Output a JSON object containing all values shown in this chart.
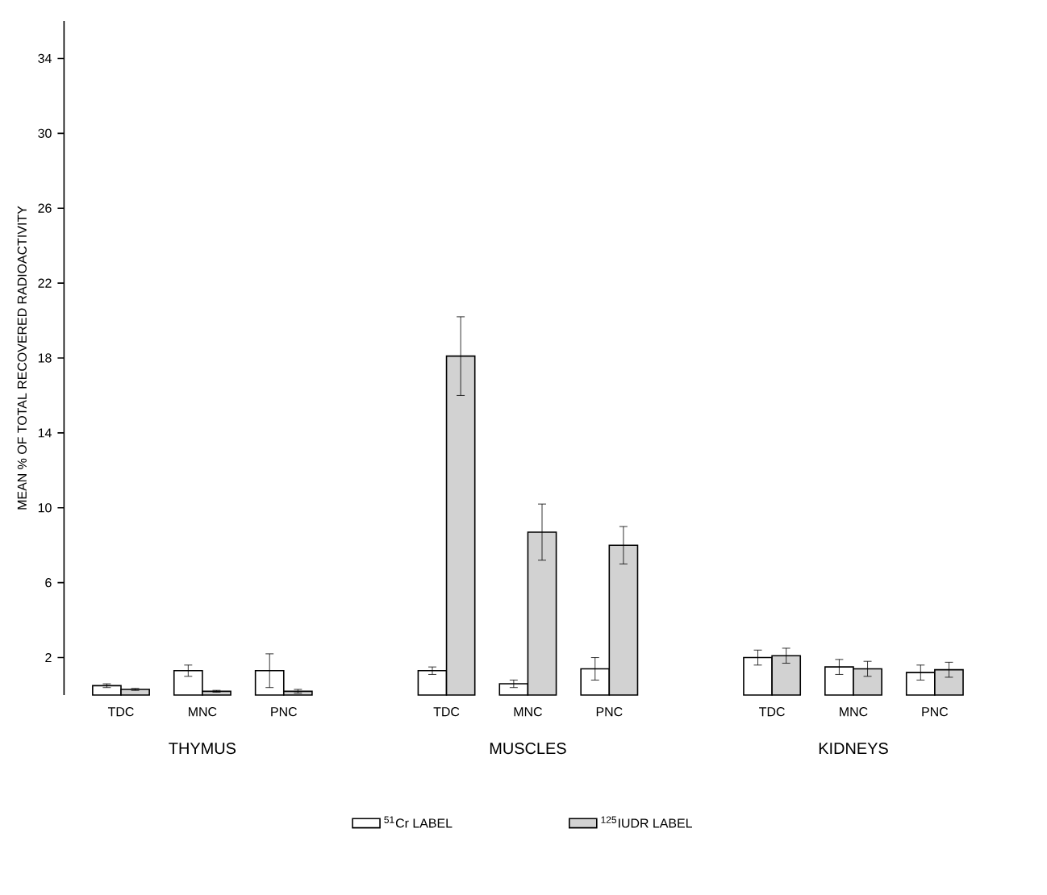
{
  "chart_data": {
    "type": "bar",
    "ylabel": "MEAN % OF TOTAL RECOVERED RADIOACTIVITY",
    "categories": [
      "TDC",
      "MNC",
      "PNC",
      null,
      "TDC",
      "MNC",
      "PNC",
      null,
      "TDC",
      "MNC",
      "PNC"
    ],
    "series": [
      {
        "name": "$^{51}$Cr LABEL",
        "color": "#ffffff",
        "values": [
          0.5,
          1.3,
          1.3,
          null,
          1.3,
          0.6,
          1.4,
          null,
          2.0,
          1.5,
          1.2
        ],
        "errors": [
          0.1,
          0.3,
          0.9,
          null,
          0.2,
          0.2,
          0.6,
          null,
          0.4,
          0.4,
          0.4
        ]
      },
      {
        "name": "$^{125}$IUDR LABEL",
        "color": "#d2d2d2",
        "values": [
          0.3,
          0.2,
          0.2,
          null,
          18.1,
          8.7,
          8.0,
          null,
          2.1,
          1.4,
          1.35
        ],
        "errors": [
          0.05,
          0.05,
          0.1,
          null,
          2.1,
          1.5,
          1.0,
          null,
          0.4,
          0.4,
          0.4
        ]
      }
    ],
    "ylim": [
      0,
      36
    ],
    "yticks": [
      2,
      6,
      10,
      14,
      18,
      22,
      26,
      30,
      34
    ],
    "legend": "bottom",
    "annotations": [
      "THYMUS",
      "MUSCLES",
      "KIDNEYS"
    ]
  }
}
